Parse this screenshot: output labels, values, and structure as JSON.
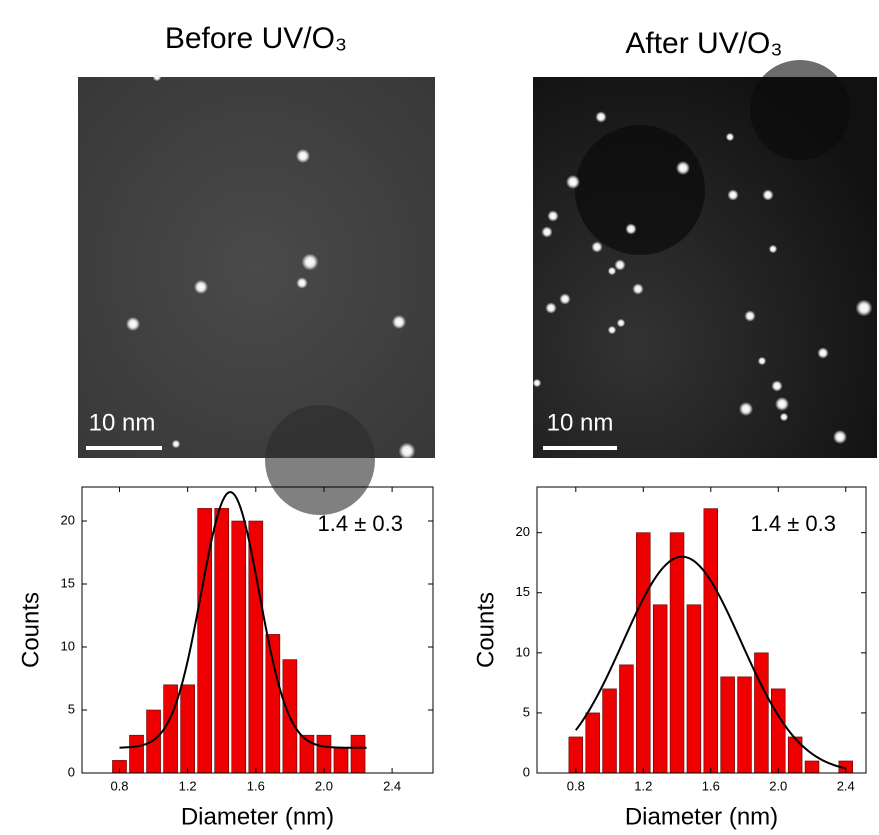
{
  "panels": [
    {
      "title": "Before UV/O₃",
      "scale_bar": "10 nm"
    },
    {
      "title": "After UV/O₃",
      "scale_bar": "10 nm"
    }
  ],
  "chart_data": [
    {
      "type": "histogram",
      "annotation": "1.4 ± 0.3",
      "xlabel": "Diameter (nm)",
      "ylabel": "Counts",
      "color": "#ee0000",
      "bins": [
        0.75,
        0.85,
        0.95,
        1.05,
        1.15,
        1.25,
        1.35,
        1.45,
        1.55,
        1.65,
        1.75,
        1.85,
        1.95,
        2.05,
        2.15,
        2.25
      ],
      "values": [
        1,
        3,
        5,
        7,
        7,
        21,
        21,
        20,
        20,
        11,
        9,
        3,
        3,
        2,
        3
      ],
      "fit": {
        "offset": 2,
        "amplitude": 20.3,
        "center": 1.45,
        "sigma": 0.17,
        "range": [
          0.8,
          2.25
        ]
      },
      "xlim": [
        0.58,
        2.64
      ],
      "ylim": [
        0,
        22.7
      ],
      "xticks": [
        0.8,
        1.2,
        1.6,
        {
          "value": 2,
          "label": "2.0"
        },
        2.4
      ],
      "yticks": [
        0,
        5,
        10,
        15,
        20
      ]
    },
    {
      "type": "histogram",
      "annotation": "1.4 ± 0.3",
      "xlabel": "Diameter (nm)",
      "ylabel": "Counts",
      "color": "#ee0000",
      "bins": [
        0.75,
        0.85,
        0.95,
        1.05,
        1.15,
        1.25,
        1.35,
        1.45,
        1.55,
        1.65,
        1.75,
        1.85,
        1.95,
        2.05,
        2.15,
        2.25,
        2.35,
        2.45
      ],
      "values": [
        3,
        5,
        7,
        9,
        20,
        14,
        20,
        14,
        22,
        8,
        8,
        10,
        7,
        3,
        1,
        0,
        1
      ],
      "fit": {
        "offset": 0,
        "amplitude": 18,
        "center": 1.43,
        "sigma": 0.35,
        "range": [
          0.8,
          2.4
        ]
      },
      "xlim": [
        0.57,
        2.52
      ],
      "ylim": [
        0,
        23.8
      ],
      "xticks": [
        0.8,
        1.2,
        1.6,
        {
          "value": 2,
          "label": "2.0"
        },
        2.4
      ],
      "yticks": [
        0,
        5,
        10,
        15,
        20
      ]
    }
  ]
}
